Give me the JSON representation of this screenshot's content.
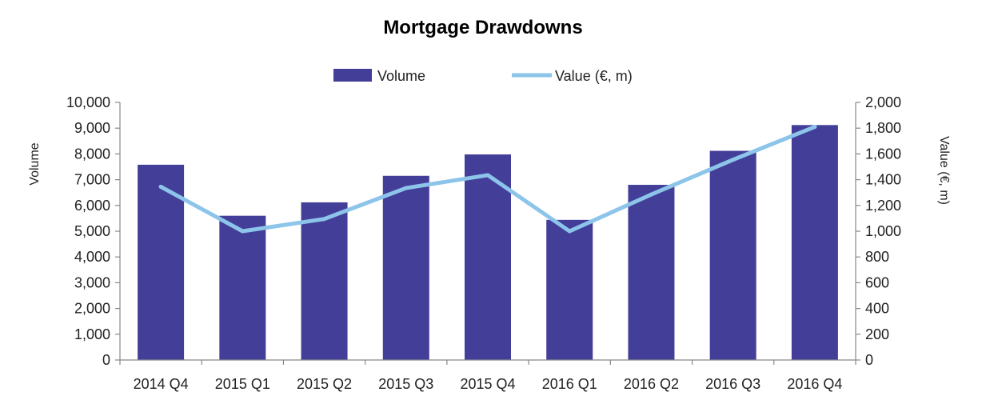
{
  "chart_data": {
    "type": "bar",
    "title": "Mortgage Drawdowns",
    "categories": [
      "2014 Q4",
      "2015 Q1",
      "2015 Q2",
      "2015 Q3",
      "2015 Q4",
      "2016 Q1",
      "2016 Q2",
      "2016 Q3",
      "2016 Q4"
    ],
    "series": [
      {
        "name": "Volume",
        "type": "bar",
        "axis": "left",
        "color": "#433e98",
        "values": [
          7580,
          5600,
          6120,
          7150,
          7980,
          5440,
          6800,
          8120,
          9120
        ]
      },
      {
        "name": "Value (€, m)",
        "type": "line",
        "axis": "right",
        "color": "#8cc4ea",
        "values": [
          1345,
          1000,
          1095,
          1335,
          1435,
          1000,
          1285,
          1555,
          1810
        ]
      }
    ],
    "ylabel": "Volume",
    "ylabel_right": "Value (€, m)",
    "ylim": [
      0,
      10000
    ],
    "ylim_right": [
      0,
      2000
    ],
    "yticks": [
      "0",
      "1,000",
      "2,000",
      "3,000",
      "4,000",
      "5,000",
      "6,000",
      "7,000",
      "8,000",
      "9,000",
      "10,000"
    ],
    "yticks_right": [
      "0",
      "200",
      "400",
      "600",
      "800",
      "1,000",
      "1,200",
      "1,400",
      "1,600",
      "1,800",
      "2,000"
    ],
    "grid": false,
    "legend_position": "top-center"
  }
}
